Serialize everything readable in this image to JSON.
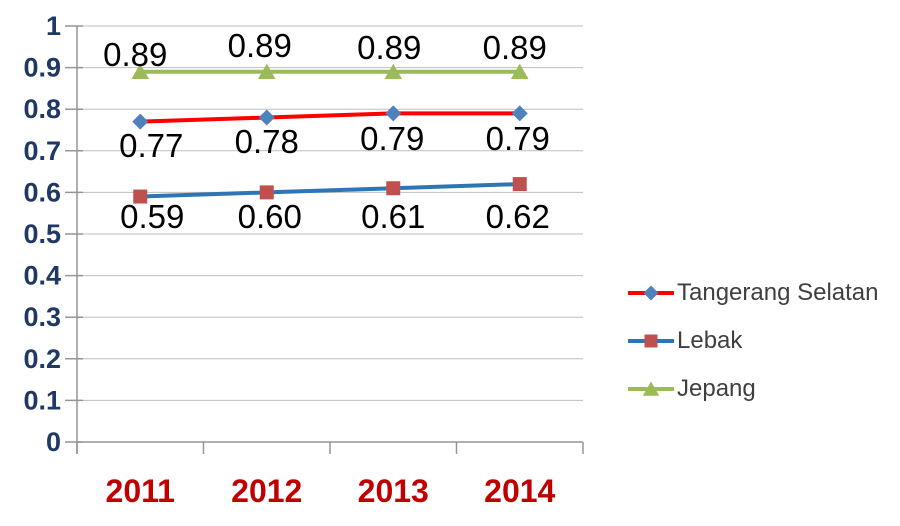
{
  "chart_data": {
    "type": "line",
    "title": "",
    "x": [
      "2011",
      "2012",
      "2013",
      "2014"
    ],
    "series": [
      {
        "name": "Tangerang Selatan",
        "values": [
          0.77,
          0.78,
          0.79,
          0.79
        ],
        "data_labels": [
          "0.77",
          "0.78",
          "0.79",
          "0.79"
        ],
        "line_color": "#FF0000",
        "marker": "diamond",
        "marker_color": "#4F81BD",
        "label_position": "below"
      },
      {
        "name": "Lebak",
        "values": [
          0.59,
          0.6,
          0.61,
          0.62
        ],
        "data_labels": [
          "0.59",
          "0.60",
          "0.61",
          "0.62"
        ],
        "line_color": "#2E75B6",
        "marker": "square",
        "marker_color": "#C0504D",
        "label_position": "below"
      },
      {
        "name": "Jepang",
        "values": [
          0.89,
          0.89,
          0.89,
          0.89
        ],
        "data_labels": [
          "0.89",
          "0.89",
          "0.89",
          "0.89"
        ],
        "line_color": "#9BBB59",
        "marker": "triangle",
        "marker_color": "#9BBB59",
        "label_position": "above"
      }
    ],
    "ylim": [
      0,
      1
    ],
    "yticks": [
      "1",
      "0.9",
      "0.8",
      "0.7",
      "0.6",
      "0.5",
      "0.4",
      "0.3",
      "0.2",
      "0.1",
      "0"
    ],
    "grid": true,
    "legend_position": "right",
    "colors": {
      "y_tick_label": "#1F3864",
      "x_tick_label": "#C00000",
      "gridline": "#BFBFBF",
      "axis": "#969696",
      "data_label": "#000000",
      "legend_text": "#3F3F3F",
      "background": "#FFFFFF"
    }
  }
}
